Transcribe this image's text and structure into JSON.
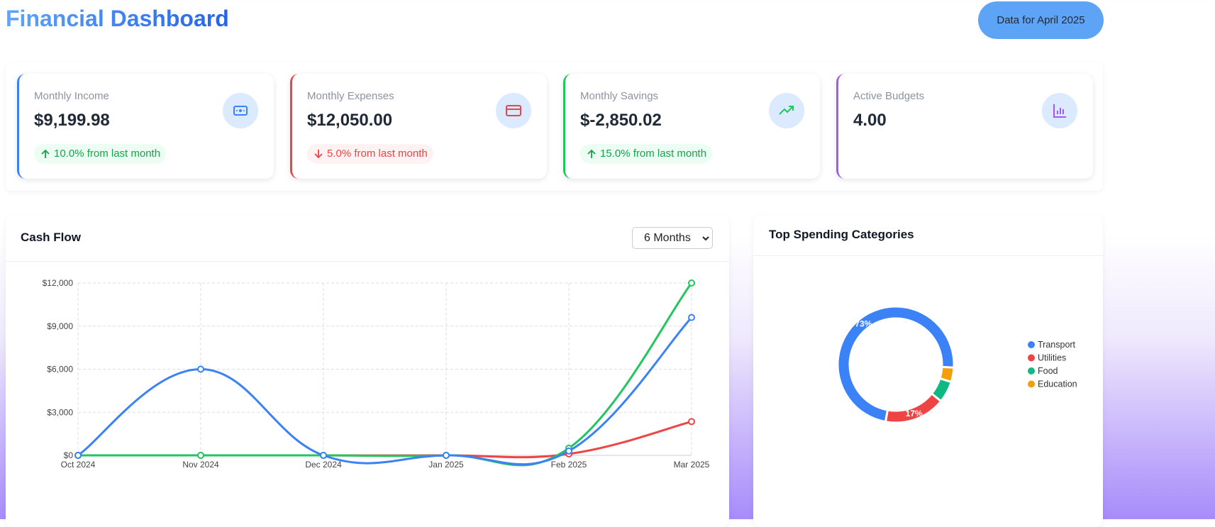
{
  "header": {
    "title": "Financial Dashboard",
    "badge": "Data for April 2025"
  },
  "cards": [
    {
      "label": "Monthly Income",
      "value": "$9,199.98",
      "change": "10.0% from last month",
      "arrow": "up",
      "accent": "#3b82f6",
      "change_color": "#16a34a",
      "change_bg": "#ecfdf3",
      "icon_color": "#3b82f6"
    },
    {
      "label": "Monthly Expenses",
      "value": "$12,050.00",
      "change": "5.0% from last month",
      "arrow": "down",
      "accent": "#ef4444",
      "change_color": "#ef4444",
      "change_bg": "#fef2f2",
      "icon_color": "#ef4444"
    },
    {
      "label": "Monthly Savings",
      "value": "$-2,850.02",
      "change": "15.0% from last month",
      "arrow": "up",
      "accent": "#22c55e",
      "change_color": "#16a34a",
      "change_bg": "#ecfdf3",
      "icon_color": "#22c55e"
    },
    {
      "label": "Active Budgets",
      "value": "4.00",
      "accent": "#a855f7",
      "icon_color": "#a855f7"
    }
  ],
  "chart_data": [
    {
      "type": "line",
      "title": "Cash Flow",
      "period_select": "6 Months",
      "categories": [
        "Oct 2024",
        "Nov 2024",
        "Dec 2024",
        "Jan 2025",
        "Feb 2025",
        "Mar 2025"
      ],
      "series": [
        {
          "color": "#ef4444",
          "values": [
            0,
            0,
            0,
            0,
            100,
            2350
          ]
        },
        {
          "color": "#22c55e",
          "values": [
            0,
            0,
            0,
            0,
            500,
            12000
          ]
        },
        {
          "color": "#3b82f6",
          "values": [
            0,
            6000,
            0,
            0,
            300,
            9600
          ]
        }
      ],
      "ylim": [
        0,
        12000
      ],
      "yticks": [
        {
          "value": 0,
          "label": "$0"
        },
        {
          "value": 3000,
          "label": "$3,000"
        },
        {
          "value": 6000,
          "label": "$6,000"
        },
        {
          "value": 9000,
          "label": "$9,000"
        },
        {
          "value": 12000,
          "label": "$12,000"
        }
      ],
      "grid": true
    },
    {
      "type": "doughnut",
      "title": "Top Spending Categories",
      "categories": [
        "Transport",
        "Utilities",
        "Food",
        "Education"
      ],
      "values": [
        73,
        17,
        6,
        4
      ],
      "value_labels": [
        "73%",
        "17%",
        null,
        null
      ],
      "colors": [
        "#3b82f6",
        "#ef4444",
        "#10b981",
        "#f59e0b"
      ]
    }
  ]
}
